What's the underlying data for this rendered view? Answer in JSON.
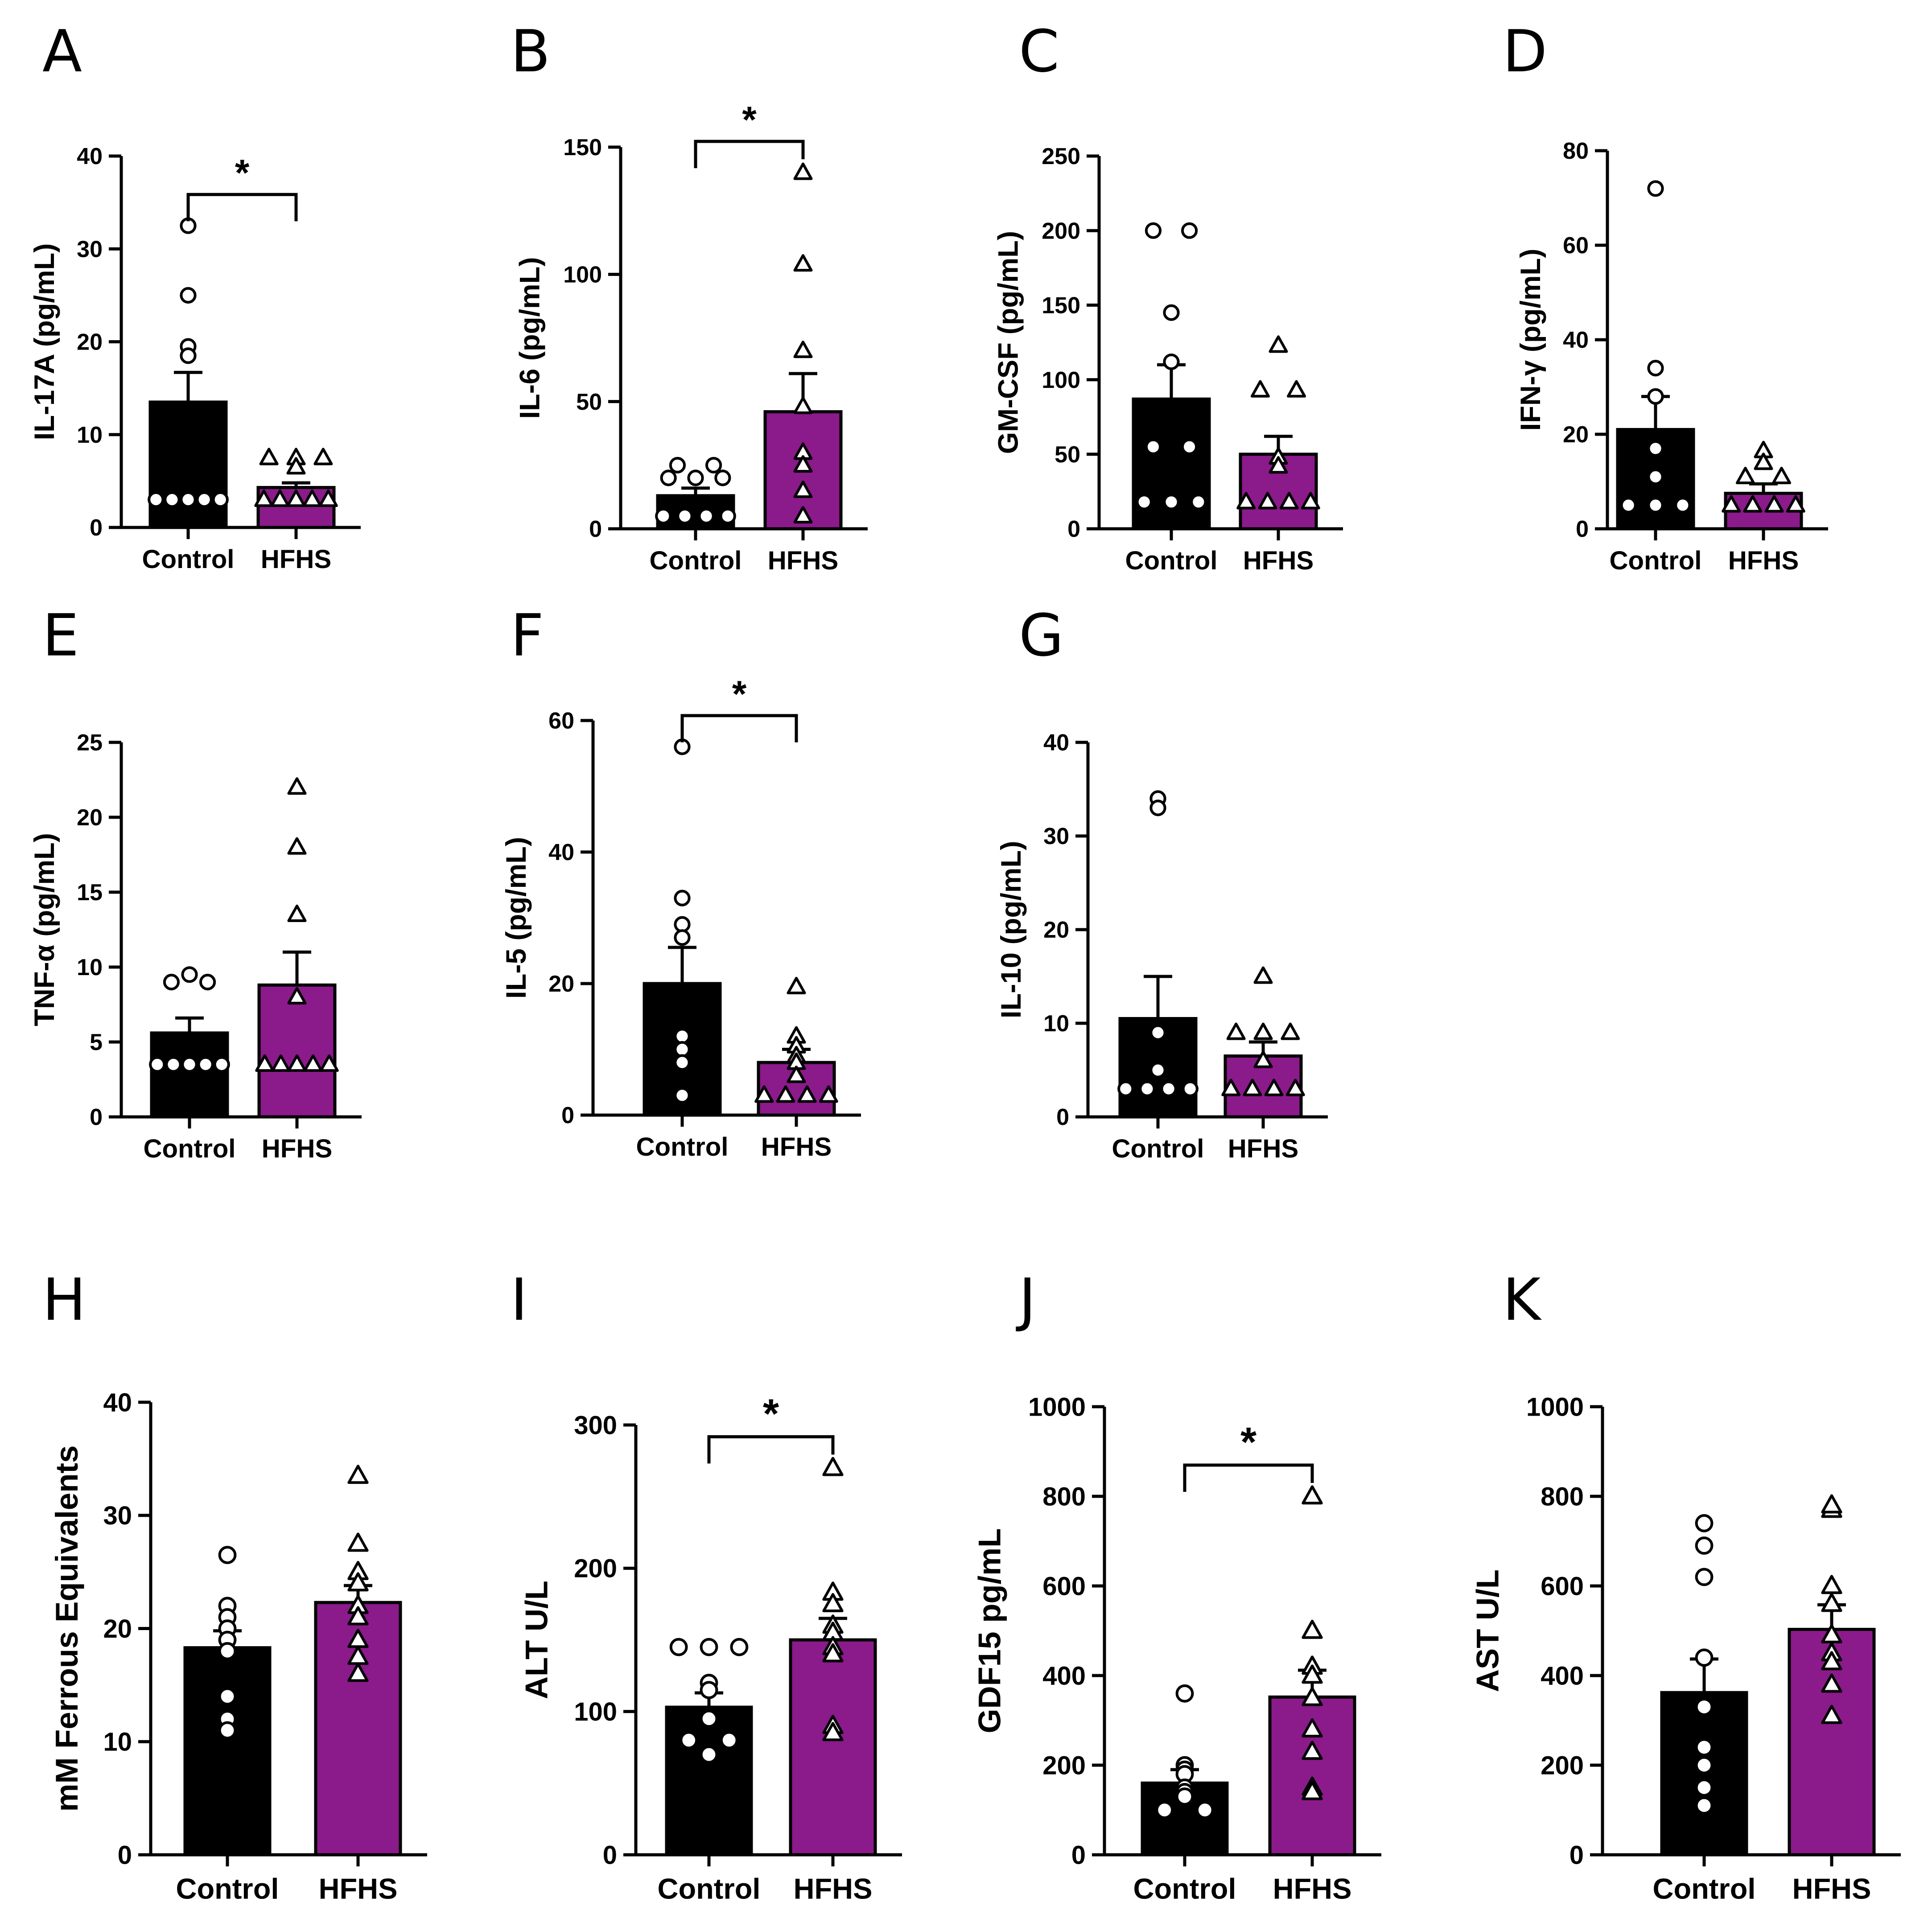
{
  "figure": {
    "colors": {
      "control": "#000000",
      "hfhs": "#8b1a8b",
      "axis": "#000000",
      "marker_fill": "#ffffff"
    }
  },
  "chart_data": [
    {
      "panel": "A",
      "type": "bar",
      "title": "",
      "ylabel": "IL-17A (pg/mL)",
      "categories": [
        "Control",
        "HFHS"
      ],
      "ylim": [
        0,
        40
      ],
      "yticks": [
        0,
        10,
        20,
        30,
        40
      ],
      "means": [
        13.5,
        4.3
      ],
      "sem": [
        3.2,
        0.5
      ],
      "significance": "*",
      "points": [
        [
          32.5,
          25,
          19.5,
          18.5,
          3,
          3,
          3,
          3,
          3
        ],
        [
          7.5,
          7.5,
          7.5,
          6.5,
          3,
          3,
          3,
          3,
          3
        ]
      ]
    },
    {
      "panel": "B",
      "type": "bar",
      "title": "",
      "ylabel": "IL-6 (pg/mL)",
      "categories": [
        "Control",
        "HFHS"
      ],
      "ylim": [
        0,
        150
      ],
      "yticks": [
        0,
        50,
        100,
        150
      ],
      "means": [
        13,
        46
      ],
      "sem": [
        3,
        15
      ],
      "significance": "*",
      "points": [
        [
          25,
          25,
          20,
          20,
          20,
          5,
          5,
          5,
          5
        ],
        [
          140,
          104,
          70,
          48,
          30,
          25,
          15,
          5
        ]
      ]
    },
    {
      "panel": "C",
      "type": "bar",
      "title": "",
      "ylabel": "GM-CSF (pg/mL)",
      "categories": [
        "Control",
        "HFHS"
      ],
      "ylim": [
        0,
        250
      ],
      "yticks": [
        0,
        50,
        100,
        150,
        200,
        250
      ],
      "means": [
        87,
        50
      ],
      "sem": [
        23,
        12
      ],
      "significance": "",
      "points": [
        [
          200,
          200,
          145,
          112,
          55,
          55,
          18,
          18,
          18
        ],
        [
          123,
          93,
          93,
          48,
          42,
          18,
          18,
          18,
          18
        ]
      ]
    },
    {
      "panel": "D",
      "type": "bar",
      "title": "",
      "ylabel": "IFN-γ (pg/mL)",
      "categories": [
        "Control",
        "HFHS"
      ],
      "ylim": [
        0,
        80
      ],
      "yticks": [
        0,
        20,
        40,
        60,
        80
      ],
      "means": [
        21,
        7.5
      ],
      "sem": [
        7,
        2
      ],
      "significance": "",
      "points": [
        [
          72,
          34,
          28,
          17,
          11,
          5,
          5,
          5
        ],
        [
          16.5,
          14,
          11,
          11,
          5,
          5,
          5,
          5
        ]
      ]
    },
    {
      "panel": "E",
      "type": "bar",
      "title": "",
      "ylabel": "TNF-α (pg/mL)",
      "categories": [
        "Control",
        "HFHS"
      ],
      "ylim": [
        0,
        25
      ],
      "yticks": [
        0,
        5,
        10,
        15,
        20,
        25
      ],
      "means": [
        5.6,
        8.8
      ],
      "sem": [
        1,
        2.2
      ],
      "significance": "",
      "points": [
        [
          9.5,
          9,
          9,
          3.5,
          3.5,
          3.5,
          3.5,
          3.5
        ],
        [
          22,
          18,
          13.5,
          8,
          3.5,
          3.5,
          3.5,
          3.5,
          3.5
        ]
      ]
    },
    {
      "panel": "F",
      "type": "bar",
      "title": "",
      "ylabel": "IL-5 (pg/mL)",
      "categories": [
        "Control",
        "HFHS"
      ],
      "ylim": [
        0,
        60
      ],
      "yticks": [
        0,
        20,
        40,
        60
      ],
      "means": [
        20,
        8
      ],
      "sem": [
        5.5,
        2
      ],
      "significance": "*",
      "points": [
        [
          56,
          33,
          29,
          27,
          12,
          10,
          8,
          3
        ],
        [
          19.5,
          12,
          10.5,
          9,
          8,
          6,
          3,
          3,
          3,
          3
        ]
      ]
    },
    {
      "panel": "G",
      "type": "bar",
      "title": "",
      "ylabel": "IL-10 (pg/mL)",
      "categories": [
        "Control",
        "HFHS"
      ],
      "ylim": [
        0,
        40
      ],
      "yticks": [
        0,
        10,
        20,
        30,
        40
      ],
      "means": [
        10.5,
        6.5
      ],
      "sem": [
        4.5,
        1.5
      ],
      "significance": "",
      "points": [
        [
          34,
          33,
          9,
          5,
          3,
          3,
          3,
          3
        ],
        [
          15,
          9,
          9,
          9,
          6,
          3,
          3,
          3,
          3
        ]
      ]
    },
    {
      "panel": "H",
      "type": "bar",
      "title": "",
      "ylabel": "mM Ferrous Equivalents",
      "categories": [
        "Control",
        "HFHS"
      ],
      "ylim": [
        0,
        40
      ],
      "yticks": [
        0,
        10,
        20,
        30,
        40
      ],
      "means": [
        18.3,
        22.3
      ],
      "sem": [
        1.5,
        1.5
      ],
      "significance": "",
      "points": [
        [
          26.5,
          22,
          21,
          20,
          19,
          18,
          14,
          12,
          11
        ],
        [
          33.5,
          27.5,
          25,
          24,
          22,
          21,
          19,
          17.5,
          16
        ]
      ]
    },
    {
      "panel": "I",
      "type": "bar",
      "title": "",
      "ylabel": "ALT U/L",
      "categories": [
        "Control",
        "HFHS"
      ],
      "ylim": [
        0,
        300
      ],
      "yticks": [
        0,
        100,
        200,
        300
      ],
      "means": [
        103,
        150
      ],
      "sem": [
        10,
        15
      ],
      "significance": "*",
      "points": [
        [
          145,
          145,
          145,
          120,
          115,
          95,
          80,
          80,
          70
        ],
        [
          270,
          183,
          175,
          160,
          155,
          145,
          140,
          90,
          85
        ]
      ]
    },
    {
      "panel": "J",
      "type": "bar",
      "title": "",
      "ylabel": "GDF15 pg/mL",
      "categories": [
        "Control",
        "HFHS"
      ],
      "ylim": [
        0,
        1000
      ],
      "yticks": [
        0,
        200,
        400,
        600,
        800,
        1000
      ],
      "means": [
        160,
        352
      ],
      "sem": [
        30,
        60
      ],
      "significance": "*",
      "points": [
        [
          360,
          200,
          190,
          180,
          150,
          140,
          130,
          100,
          100
        ],
        [
          800,
          500,
          420,
          400,
          350,
          280,
          230,
          150,
          140
        ]
      ]
    },
    {
      "panel": "K",
      "type": "bar",
      "title": "",
      "ylabel": "AST U/L",
      "categories": [
        "Control",
        "HFHS"
      ],
      "ylim": [
        0,
        1000
      ],
      "yticks": [
        0,
        200,
        400,
        600,
        800,
        1000
      ],
      "means": [
        362,
        503
      ],
      "sem": [
        75,
        55
      ],
      "significance": "",
      "points": [
        [
          740,
          690,
          620,
          440,
          330,
          240,
          200,
          150,
          110
        ],
        [
          770,
          780,
          600,
          560,
          490,
          450,
          430,
          380,
          310
        ]
      ]
    }
  ]
}
